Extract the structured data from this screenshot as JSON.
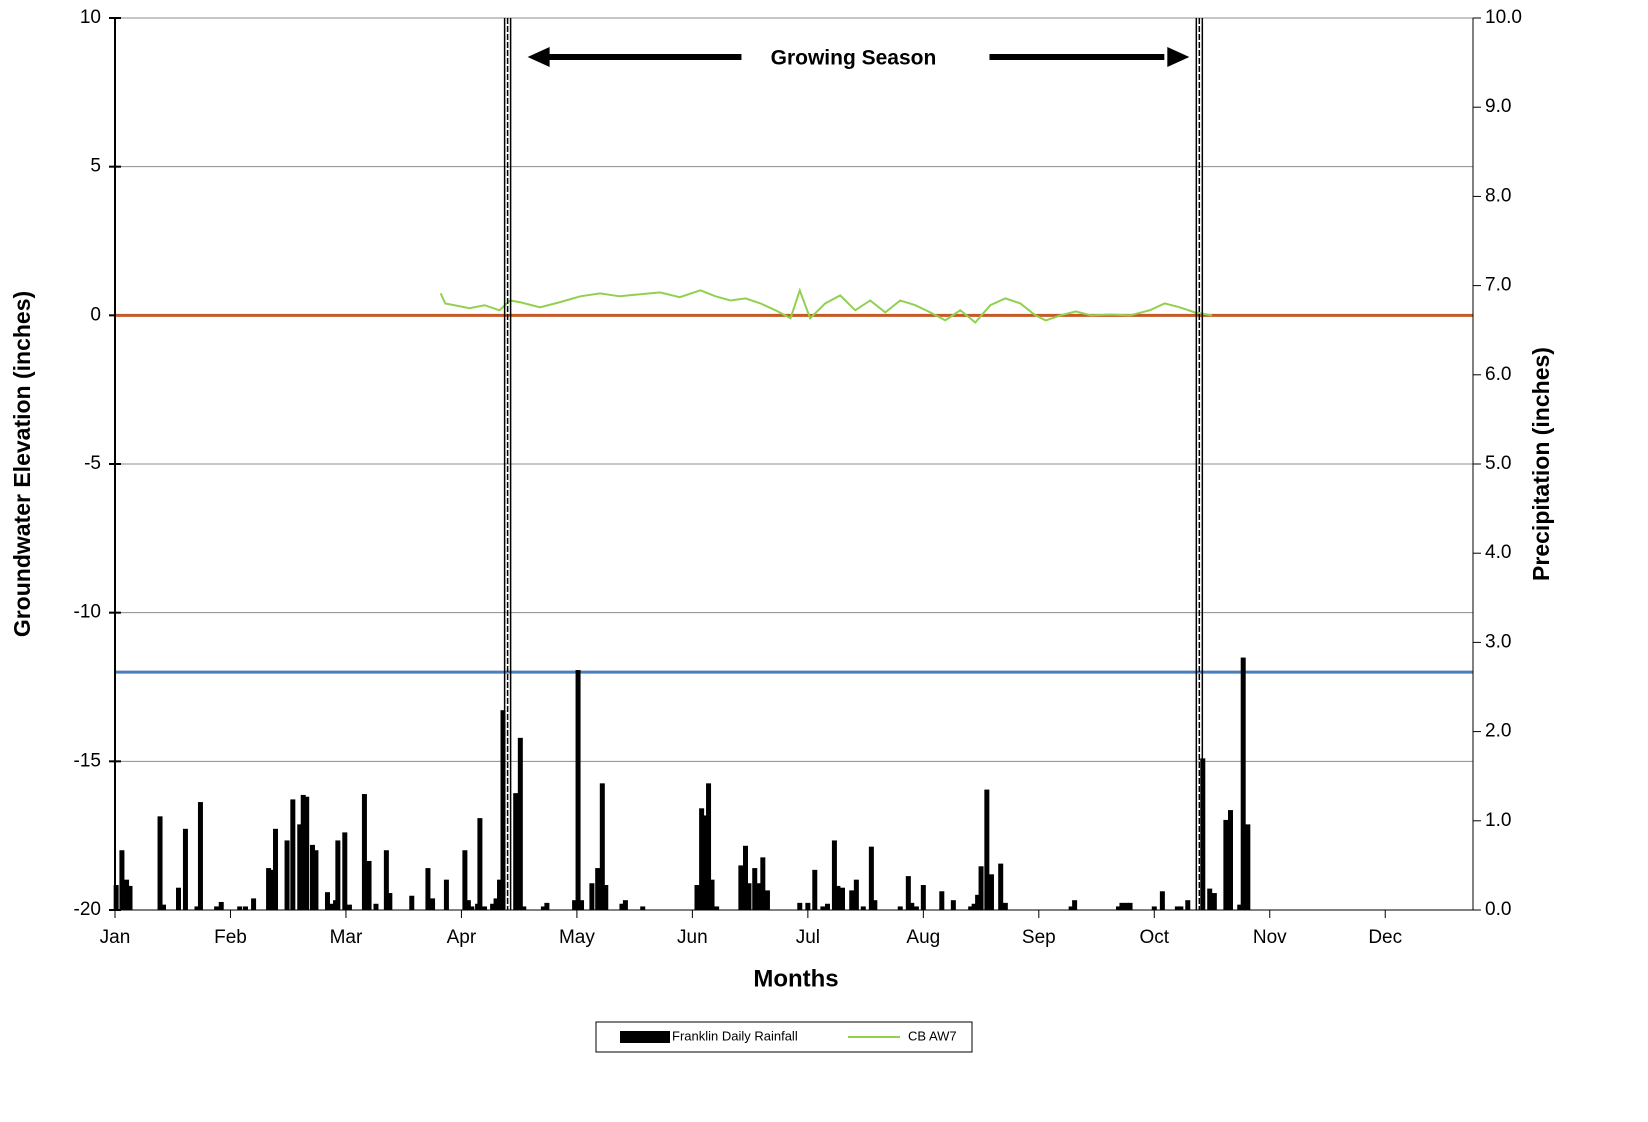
{
  "chart_data": {
    "type": "combo",
    "x_label": "Months",
    "y_label": "Groundwater Elevation (inches)",
    "y2_label": "Precipitation (inches)",
    "xlim": [
      1,
      12.76
    ],
    "xticks": [
      {
        "value": 1,
        "label": "Jan"
      },
      {
        "value": 2,
        "label": "Feb"
      },
      {
        "value": 3,
        "label": "Mar"
      },
      {
        "value": 4,
        "label": "Apr"
      },
      {
        "value": 5,
        "label": "May"
      },
      {
        "value": 6,
        "label": "Jun"
      },
      {
        "value": 7,
        "label": "Jul"
      },
      {
        "value": 8,
        "label": "Aug"
      },
      {
        "value": 9,
        "label": "Sep"
      },
      {
        "value": 10,
        "label": "Oct"
      },
      {
        "value": 11,
        "label": "Nov"
      },
      {
        "value": 12,
        "label": "Dec"
      }
    ],
    "ylim": [
      -20,
      10
    ],
    "yticks": [
      -20,
      -15,
      -10,
      -5,
      0,
      5,
      10
    ],
    "y2lim": [
      0,
      10
    ],
    "y2ticks": [
      {
        "value": 0,
        "label": "0.0"
      },
      {
        "value": 1,
        "label": "1.0"
      },
      {
        "value": 2,
        "label": "2.0"
      },
      {
        "value": 3,
        "label": "3.0"
      },
      {
        "value": 4,
        "label": "4.0"
      },
      {
        "value": 5,
        "label": "5.0"
      },
      {
        "value": 6,
        "label": "6.0"
      },
      {
        "value": 7,
        "label": "7.0"
      },
      {
        "value": 8,
        "label": "8.0"
      },
      {
        "value": 9,
        "label": "9.0"
      },
      {
        "value": 10,
        "label": "10.0"
      }
    ],
    "grid": true,
    "reference_lines": [
      {
        "value": 0,
        "color": "#c55a28"
      },
      {
        "value": -12,
        "color": "#4a7ebb"
      }
    ],
    "growing_season": {
      "label": "Growing Season",
      "start": 4.4,
      "end": 10.39
    },
    "series": [
      {
        "name": "Franklin Daily Rainfall",
        "type": "bar",
        "axis": "y2",
        "color": "#000000",
        "x": [
          1.01,
          1.06,
          1.1,
          1.13,
          1.39,
          1.42,
          1.55,
          1.61,
          1.71,
          1.74,
          1.88,
          1.92,
          2.08,
          2.13,
          2.2,
          2.33,
          2.36,
          2.39,
          2.49,
          2.54,
          2.6,
          2.63,
          2.66,
          2.71,
          2.74,
          2.84,
          2.87,
          2.91,
          2.93,
          2.99,
          3.03,
          3.16,
          3.2,
          3.26,
          3.35,
          3.38,
          3.57,
          3.71,
          3.75,
          3.87,
          4.03,
          4.06,
          4.09,
          4.14,
          4.16,
          4.2,
          4.27,
          4.3,
          4.33,
          4.36,
          4.47,
          4.51,
          4.54,
          4.71,
          4.74,
          4.98,
          5.01,
          5.04,
          5.13,
          5.18,
          5.22,
          5.25,
          5.39,
          5.42,
          5.57,
          6.04,
          6.08,
          6.11,
          6.14,
          6.17,
          6.21,
          6.42,
          6.46,
          6.49,
          6.54,
          6.58,
          6.61,
          6.65,
          6.93,
          7.0,
          7.06,
          7.13,
          7.17,
          7.23,
          7.26,
          7.3,
          7.38,
          7.42,
          7.48,
          7.55,
          7.58,
          7.8,
          7.87,
          7.9,
          7.94,
          8.0,
          8.16,
          8.26,
          8.41,
          8.44,
          8.47,
          8.5,
          8.55,
          8.59,
          8.67,
          8.71,
          9.28,
          9.31,
          9.69,
          9.72,
          9.76,
          9.79,
          10.0,
          10.07,
          10.2,
          10.23,
          10.29,
          10.42,
          10.48,
          10.52,
          10.62,
          10.66,
          10.74,
          10.77,
          10.81
        ],
        "values": [
          0.28,
          0.67,
          0.34,
          0.27,
          1.05,
          0.06,
          0.25,
          0.91,
          0.04,
          1.21,
          0.04,
          0.09,
          0.04,
          0.04,
          0.13,
          0.47,
          0.45,
          0.91,
          0.78,
          1.24,
          0.96,
          1.29,
          1.27,
          0.73,
          0.67,
          0.2,
          0.07,
          0.11,
          0.78,
          0.87,
          0.06,
          1.3,
          0.55,
          0.07,
          0.67,
          0.19,
          0.16,
          0.47,
          0.13,
          0.34,
          0.67,
          0.11,
          0.04,
          0.07,
          1.03,
          0.04,
          0.07,
          0.13,
          0.34,
          2.24,
          1.31,
          1.93,
          0.04,
          0.04,
          0.08,
          0.11,
          2.69,
          0.11,
          0.3,
          0.47,
          1.42,
          0.28,
          0.07,
          0.11,
          0.04,
          0.28,
          1.14,
          1.06,
          1.42,
          0.34,
          0.04,
          0.5,
          0.72,
          0.3,
          0.47,
          0.3,
          0.59,
          0.22,
          0.08,
          0.08,
          0.45,
          0.04,
          0.07,
          0.78,
          0.27,
          0.25,
          0.22,
          0.34,
          0.04,
          0.71,
          0.11,
          0.04,
          0.38,
          0.08,
          0.04,
          0.28,
          0.21,
          0.11,
          0.04,
          0.07,
          0.17,
          0.49,
          1.35,
          0.4,
          0.52,
          0.08,
          0.04,
          0.11,
          0.04,
          0.08,
          0.08,
          0.08,
          0.04,
          0.21,
          0.04,
          0.04,
          0.11,
          1.7,
          0.24,
          0.19,
          1.01,
          1.12,
          0.06,
          2.83,
          0.96
        ]
      },
      {
        "name": "CB AW7",
        "type": "line",
        "color": "#92d050",
        "x": [
          3.82,
          3.86,
          3.94,
          4.07,
          4.2,
          4.33,
          4.42,
          4.51,
          4.68,
          4.85,
          5.03,
          5.2,
          5.37,
          5.55,
          5.72,
          5.89,
          6.07,
          6.2,
          6.33,
          6.46,
          6.59,
          6.72,
          6.85,
          6.93,
          7.02,
          7.15,
          7.28,
          7.41,
          7.54,
          7.67,
          7.8,
          7.93,
          8.06,
          8.19,
          8.32,
          8.45,
          8.58,
          8.71,
          8.84,
          8.97,
          9.06,
          9.19,
          9.32,
          9.45,
          9.62,
          9.79,
          9.96,
          10.09,
          10.22,
          10.35,
          10.5
        ],
        "values": [
          0.74,
          0.4,
          0.34,
          0.24,
          0.34,
          0.17,
          0.5,
          0.44,
          0.27,
          0.44,
          0.64,
          0.74,
          0.64,
          0.71,
          0.77,
          0.61,
          0.84,
          0.64,
          0.5,
          0.57,
          0.4,
          0.17,
          -0.1,
          0.84,
          -0.1,
          0.4,
          0.67,
          0.17,
          0.5,
          0.1,
          0.5,
          0.34,
          0.1,
          -0.17,
          0.17,
          -0.24,
          0.34,
          0.57,
          0.4,
          0.0,
          -0.17,
          0.0,
          0.13,
          0.0,
          0.03,
          0.0,
          0.17,
          0.4,
          0.27,
          0.1,
          0.0
        ]
      }
    ]
  }
}
